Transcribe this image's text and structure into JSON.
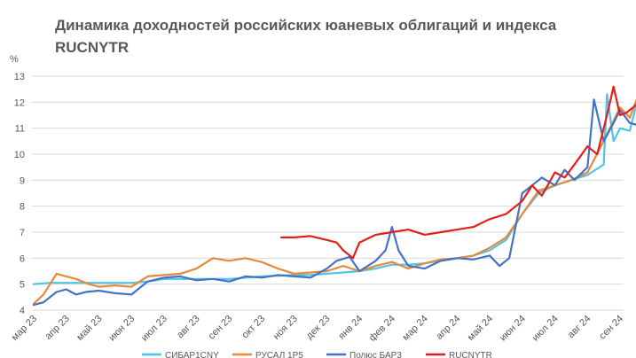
{
  "chart_data": {
    "type": "line",
    "title": "Динамика доходностей российских юаневых облигаций и индекса RUCNYTR",
    "title_lines": [
      "Динамика доходностей российских юаневых облигаций и индекса",
      "RUCNYTR"
    ],
    "ylabel": "%",
    "ylim": [
      4,
      13
    ],
    "yticks": [
      4,
      5,
      6,
      7,
      8,
      9,
      10,
      11,
      12,
      13
    ],
    "grid": true,
    "x_categories": [
      "мар 23",
      "апр 23",
      "май 23",
      "июн 23",
      "июл 23",
      "авг 23",
      "сен 23",
      "окт 23",
      "ноя 23",
      "дек 23",
      "янв 24",
      "фев 24",
      "мар 24",
      "апр 24",
      "май 24",
      "июн 24",
      "июл 24",
      "авг 24",
      "сен 24"
    ],
    "x_unit": "month index from мар 23",
    "legend_position": "bottom",
    "series": [
      {
        "name": "СИБАР1CNY",
        "color": "#4FC3E8",
        "x": [
          0,
          0.5,
          1,
          2,
          3,
          3.5,
          4,
          5,
          6,
          7,
          8,
          8.5,
          9,
          9.5,
          10,
          10.5,
          11,
          11.5,
          12,
          12.5,
          13,
          13.5,
          14,
          14.5,
          15,
          15.5,
          16,
          16.5,
          17,
          17.5,
          17.6,
          17.8,
          18,
          18.3,
          18.6
        ],
        "values": [
          5.0,
          5.05,
          5.05,
          5.05,
          5.05,
          5.1,
          5.2,
          5.2,
          5.2,
          5.3,
          5.35,
          5.35,
          5.4,
          5.45,
          5.5,
          5.6,
          5.75,
          5.75,
          5.8,
          5.9,
          6.0,
          6.1,
          6.3,
          6.7,
          7.7,
          8.5,
          8.8,
          9.0,
          9.2,
          9.6,
          12.3,
          10.5,
          11.0,
          10.9,
          12.4
        ]
      },
      {
        "name": "РУСАЛ 1P5",
        "color": "#E58A3D",
        "x": [
          0,
          0.3,
          0.7,
          1,
          1.3,
          1.7,
          2,
          2.5,
          3,
          3.5,
          4,
          4.5,
          5,
          5.5,
          6,
          6.5,
          7,
          7.5,
          8,
          8.5,
          9,
          9.5,
          10,
          10.5,
          11,
          11.5,
          12,
          12.5,
          13,
          13.5,
          14,
          14.5,
          15,
          15.5,
          16,
          16.5,
          17,
          17.5,
          18,
          18.3,
          18.6
        ],
        "values": [
          4.25,
          4.6,
          5.4,
          5.3,
          5.2,
          5.0,
          4.9,
          4.95,
          4.9,
          5.3,
          5.35,
          5.4,
          5.6,
          6.0,
          5.9,
          6.0,
          5.85,
          5.6,
          5.4,
          5.45,
          5.5,
          5.7,
          5.5,
          5.7,
          5.85,
          5.6,
          5.8,
          5.95,
          6.0,
          6.1,
          6.4,
          6.8,
          7.7,
          8.6,
          8.8,
          9.0,
          9.3,
          10.5,
          11.8,
          11.4,
          12.4
        ]
      },
      {
        "name": "Полюс БАР3",
        "color": "#4472C4",
        "x": [
          0,
          0.3,
          0.7,
          1,
          1.3,
          1.6,
          2,
          2.5,
          3,
          3.5,
          4,
          4.5,
          5,
          5.5,
          6,
          6.5,
          7,
          7.5,
          8,
          8.5,
          9,
          9.3,
          9.7,
          10,
          10.5,
          10.8,
          11,
          11.2,
          11.5,
          12,
          12.5,
          13,
          13.5,
          14,
          14.3,
          14.6,
          15,
          15.3,
          15.6,
          16,
          16.3,
          16.6,
          17,
          17.2,
          17.5,
          17.8,
          18,
          18.3,
          18.6
        ],
        "values": [
          4.2,
          4.3,
          4.7,
          4.8,
          4.6,
          4.7,
          4.75,
          4.65,
          4.6,
          5.1,
          5.25,
          5.3,
          5.15,
          5.2,
          5.1,
          5.3,
          5.25,
          5.35,
          5.3,
          5.25,
          5.6,
          5.9,
          6.05,
          5.5,
          5.9,
          6.3,
          7.2,
          6.3,
          5.7,
          5.6,
          5.9,
          6.0,
          5.95,
          6.1,
          5.7,
          6.0,
          8.5,
          8.8,
          9.1,
          8.8,
          9.4,
          9.0,
          9.5,
          12.1,
          10.5,
          11.2,
          11.7,
          11.2,
          11.1
        ]
      },
      {
        "name": "RUCNYTR",
        "color": "#E0201B",
        "x": [
          7.6,
          8,
          8.5,
          9,
          9.3,
          9.5,
          9.8,
          10,
          10.5,
          11,
          11.5,
          12,
          12.5,
          13,
          13.5,
          14,
          14.5,
          15,
          15.3,
          15.6,
          16,
          16.3,
          16.6,
          17,
          17.3,
          17.6,
          17.8,
          18,
          18.2,
          18.6
        ],
        "values": [
          6.8,
          6.8,
          6.85,
          6.7,
          6.6,
          6.3,
          6.0,
          6.6,
          6.9,
          7.0,
          7.1,
          6.9,
          7.0,
          7.1,
          7.2,
          7.5,
          7.7,
          8.2,
          8.8,
          8.4,
          9.3,
          9.1,
          9.6,
          10.3,
          10.0,
          11.5,
          12.6,
          11.5,
          11.6,
          12.0
        ]
      }
    ]
  }
}
